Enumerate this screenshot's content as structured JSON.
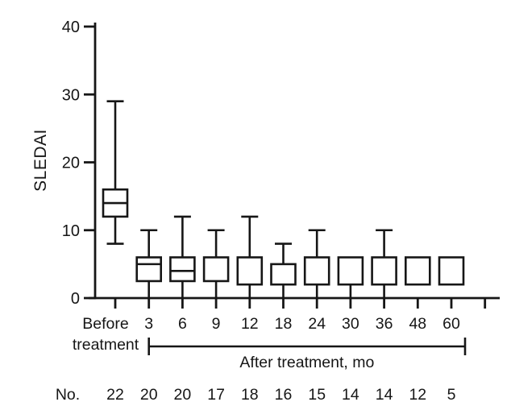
{
  "chart_data": {
    "type": "boxplot",
    "title": "",
    "ylabel": "SLEDAI",
    "xlabel": "",
    "ylim": [
      0,
      40
    ],
    "yticks": [
      0,
      10,
      20,
      30,
      40
    ],
    "grid": false,
    "legend": null,
    "background_color": "#ffffff",
    "line_color": "#161616",
    "x_first_category_label_lines": [
      "Before",
      "treatment"
    ],
    "bracket_label": "After treatment, mo",
    "bracket_span_labels": [
      "3",
      "60"
    ],
    "count_row_label": "No.",
    "has_extra_unlabeled_right_tick": true,
    "boxes": [
      {
        "label": "Before",
        "n": "22",
        "whisker_low": 8,
        "q1": 12,
        "median": 14,
        "q3": 16,
        "whisker_high": 29,
        "low_capped": true,
        "high_capped": true
      },
      {
        "label": "3",
        "n": "20",
        "whisker_low": 0,
        "q1": 2.5,
        "median": 5,
        "q3": 6,
        "whisker_high": 10,
        "low_capped": false,
        "high_capped": true
      },
      {
        "label": "6",
        "n": "20",
        "whisker_low": 0,
        "q1": 2.5,
        "median": 4,
        "q3": 6,
        "whisker_high": 12,
        "low_capped": false,
        "high_capped": true
      },
      {
        "label": "9",
        "n": "17",
        "whisker_low": 0,
        "q1": 2.5,
        "median": null,
        "q3": 6,
        "whisker_high": 10,
        "low_capped": false,
        "high_capped": true
      },
      {
        "label": "12",
        "n": "18",
        "whisker_low": 0,
        "q1": 2,
        "median": null,
        "q3": 6,
        "whisker_high": 12,
        "low_capped": false,
        "high_capped": true
      },
      {
        "label": "18",
        "n": "16",
        "whisker_low": 0,
        "q1": 2,
        "median": null,
        "q3": 5,
        "whisker_high": 8,
        "low_capped": false,
        "high_capped": true
      },
      {
        "label": "24",
        "n": "15",
        "whisker_low": 0,
        "q1": 2,
        "median": null,
        "q3": 6,
        "whisker_high": 10,
        "low_capped": false,
        "high_capped": true
      },
      {
        "label": "30",
        "n": "14",
        "whisker_low": 0,
        "q1": 2,
        "median": null,
        "q3": 6,
        "whisker_high": null,
        "low_capped": false,
        "high_capped": false
      },
      {
        "label": "36",
        "n": "14",
        "whisker_low": 0,
        "q1": 2,
        "median": null,
        "q3": 6,
        "whisker_high": 10,
        "low_capped": false,
        "high_capped": true
      },
      {
        "label": "48",
        "n": "12",
        "whisker_low": null,
        "q1": 2,
        "median": null,
        "q3": 6,
        "whisker_high": null,
        "low_capped": false,
        "high_capped": false
      },
      {
        "label": "60",
        "n": "5",
        "whisker_low": null,
        "q1": 2,
        "median": null,
        "q3": 6,
        "whisker_high": null,
        "low_capped": false,
        "high_capped": false
      }
    ]
  }
}
